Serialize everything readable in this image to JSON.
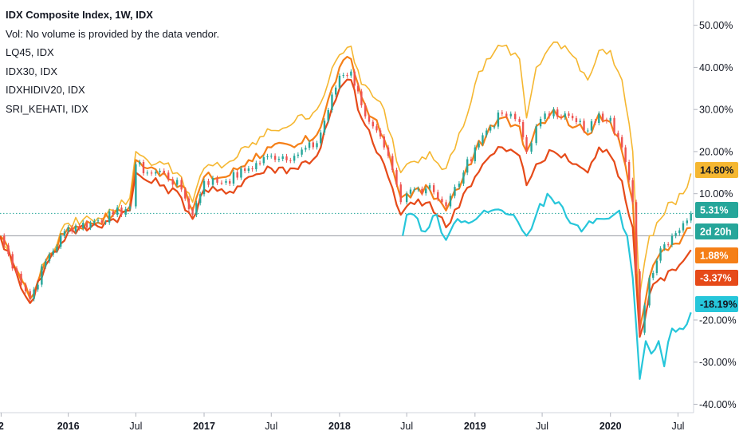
{
  "legend": {
    "title": "IDX Composite Index, 1W, IDX",
    "vol": "Vol: No volume is provided by the data vendor.",
    "items": [
      "LQ45, IDX",
      "IDX30, IDX",
      "IDXHIDIV20, IDX",
      "SRI_KEHATI, IDX"
    ]
  },
  "chart_data": {
    "type": "line",
    "y_axis": {
      "position": "right",
      "ylim": [
        -42,
        56
      ],
      "unit": "%",
      "ticks": [
        "50.00%",
        "40.00%",
        "30.00%",
        "20.00%",
        "10.00%",
        "-20.00%",
        "-30.00%",
        "-40.00%"
      ],
      "tick_values": [
        50,
        40,
        30,
        20,
        10,
        -20,
        -30,
        -40
      ]
    },
    "x_axis": {
      "range": [
        "2015-07-01",
        "2020-08-12"
      ],
      "ticks": [
        {
          "label": "2",
          "date": "2015-07-04",
          "bold": true
        },
        {
          "label": "2016",
          "date": "2016-01-01",
          "bold": true
        },
        {
          "label": "Jul",
          "date": "2016-07-01",
          "bold": false
        },
        {
          "label": "2017",
          "date": "2017-01-01",
          "bold": true
        },
        {
          "label": "Jul",
          "date": "2017-07-01",
          "bold": false
        },
        {
          "label": "2018",
          "date": "2018-01-01",
          "bold": true
        },
        {
          "label": "Jul",
          "date": "2018-07-01",
          "bold": false
        },
        {
          "label": "2019",
          "date": "2019-01-01",
          "bold": true
        },
        {
          "label": "Jul",
          "date": "2019-07-01",
          "bold": false
        },
        {
          "label": "2020",
          "date": "2020-01-01",
          "bold": true
        },
        {
          "label": "Jul",
          "date": "2020-07-01",
          "bold": false
        }
      ]
    },
    "reference_lines": [
      {
        "value": 0,
        "color": "#9598a1",
        "style": "solid"
      },
      {
        "value": 5.31,
        "color": "#26a69a",
        "style": "dotted"
      }
    ],
    "badges": [
      {
        "label": "14.80%",
        "value": 14.8,
        "color": "#f5b731",
        "text_color": "#131722"
      },
      {
        "label": "5.31%",
        "value": 5.31,
        "color": "#26a69a",
        "text_color": "#ffffff"
      },
      {
        "label": "2d 20h",
        "value": 0,
        "color": "#26a69a",
        "text_color": "#ffffff"
      },
      {
        "label": "1.88%",
        "value": 1.88,
        "color": "#f57f17",
        "text_color": "#ffffff"
      },
      {
        "label": "-3.37%",
        "value": -3.37,
        "color": "#e64a19",
        "text_color": "#ffffff"
      },
      {
        "label": "-18.19%",
        "value": -18.19,
        "color": "#26c6da",
        "text_color": "#131722"
      }
    ],
    "series": [
      {
        "name": "LQ45, IDX",
        "color": "#f57f17",
        "kind": "line",
        "x": [
          "2015-07-01",
          "2015-08-15",
          "2015-09-20",
          "2015-11-01",
          "2016-01-01",
          "2016-03-01",
          "2016-05-01",
          "2016-06-15",
          "2016-07-01",
          "2016-08-01",
          "2016-09-15",
          "2016-11-01",
          "2016-12-01",
          "2017-01-01",
          "2017-03-01",
          "2017-05-01",
          "2017-07-01",
          "2017-09-01",
          "2017-11-01",
          "2018-01-01",
          "2018-02-01",
          "2018-03-01",
          "2018-04-01",
          "2018-05-01",
          "2018-06-15",
          "2018-07-01",
          "2018-09-01",
          "2018-10-15",
          "2018-12-01",
          "2019-01-01",
          "2019-02-01",
          "2019-03-15",
          "2019-05-01",
          "2019-05-20",
          "2019-06-15",
          "2019-08-01",
          "2019-10-01",
          "2019-11-01",
          "2019-12-01",
          "2020-01-01",
          "2020-02-01",
          "2020-03-01",
          "2020-03-20",
          "2020-04-15",
          "2020-05-15",
          "2020-06-15",
          "2020-07-15",
          "2020-08-05"
        ],
        "y": [
          0,
          -8,
          -15,
          -6,
          2,
          3,
          5,
          7,
          18,
          16,
          15,
          12,
          6,
          14,
          14,
          18,
          21,
          21,
          24,
          40,
          42,
          33,
          28,
          23,
          9,
          10,
          11,
          6,
          14,
          20,
          24,
          28,
          26,
          20,
          26,
          30,
          26,
          24,
          29,
          27,
          20,
          8,
          -22,
          -10,
          -4,
          -2,
          0,
          1.88
        ]
      },
      {
        "name": "IDX30, IDX",
        "color": "#e64a19",
        "kind": "line",
        "x": [
          "2015-07-01",
          "2015-08-15",
          "2015-09-20",
          "2015-11-01",
          "2016-01-01",
          "2016-03-01",
          "2016-05-01",
          "2016-06-15",
          "2016-07-01",
          "2016-08-01",
          "2016-09-15",
          "2016-11-01",
          "2016-12-01",
          "2017-01-01",
          "2017-03-01",
          "2017-05-01",
          "2017-07-01",
          "2017-09-01",
          "2017-11-01",
          "2018-01-01",
          "2018-02-01",
          "2018-03-01",
          "2018-04-01",
          "2018-05-01",
          "2018-06-15",
          "2018-07-01",
          "2018-09-01",
          "2018-10-15",
          "2018-12-01",
          "2019-01-01",
          "2019-02-01",
          "2019-03-15",
          "2019-05-01",
          "2019-05-20",
          "2019-06-15",
          "2019-08-01",
          "2019-10-01",
          "2019-11-01",
          "2019-12-01",
          "2020-01-01",
          "2020-02-01",
          "2020-03-01",
          "2020-03-20",
          "2020-04-15",
          "2020-05-15",
          "2020-06-15",
          "2020-07-15",
          "2020-08-05"
        ],
        "y": [
          0,
          -9,
          -16,
          -7,
          1,
          2,
          4,
          6,
          15,
          13,
          12,
          9,
          4,
          11,
          10,
          14,
          16,
          16,
          19,
          35,
          37,
          28,
          22,
          17,
          5,
          7,
          8,
          2,
          10,
          14,
          18,
          21,
          19,
          12,
          17,
          20,
          17,
          15,
          21,
          19,
          13,
          2,
          -24,
          -14,
          -10,
          -8,
          -6,
          -3.37
        ]
      },
      {
        "name": "IDXHIDIV20, IDX",
        "color": "#f5b731",
        "kind": "line",
        "x": [
          "2015-07-01",
          "2015-08-15",
          "2015-09-20",
          "2015-11-01",
          "2016-01-01",
          "2016-03-01",
          "2016-05-01",
          "2016-06-15",
          "2016-07-01",
          "2016-08-01",
          "2016-09-15",
          "2016-11-01",
          "2016-12-01",
          "2017-01-01",
          "2017-03-01",
          "2017-05-01",
          "2017-07-01",
          "2017-09-01",
          "2017-11-01",
          "2018-01-01",
          "2018-02-01",
          "2018-03-01",
          "2018-04-01",
          "2018-05-01",
          "2018-06-15",
          "2018-07-01",
          "2018-09-01",
          "2018-10-15",
          "2018-12-01",
          "2019-01-01",
          "2019-02-01",
          "2019-03-15",
          "2019-05-01",
          "2019-05-20",
          "2019-06-15",
          "2019-08-01",
          "2019-10-01",
          "2019-11-01",
          "2019-12-01",
          "2020-01-01",
          "2020-02-01",
          "2020-03-01",
          "2020-03-20",
          "2020-04-15",
          "2020-05-15",
          "2020-06-15",
          "2020-07-15",
          "2020-08-05"
        ],
        "y": [
          0,
          -8,
          -15,
          -6,
          3,
          4,
          6,
          9,
          20,
          18,
          17,
          14,
          8,
          16,
          17,
          21,
          25,
          27,
          30,
          43,
          45,
          36,
          33,
          30,
          15,
          17,
          20,
          16,
          26,
          36,
          42,
          45,
          42,
          28,
          40,
          46,
          42,
          37,
          44,
          44,
          37,
          20,
          -14,
          0,
          4,
          8,
          10,
          14.8
        ]
      },
      {
        "name": "SRI_KEHATI, IDX",
        "color": "#26c6da",
        "kind": "line",
        "x": [
          "2018-06-20",
          "2018-07-01",
          "2018-07-20",
          "2018-08-20",
          "2018-09-20",
          "2018-10-15",
          "2018-11-15",
          "2018-12-15",
          "2019-01-15",
          "2019-02-15",
          "2019-03-15",
          "2019-04-15",
          "2019-05-20",
          "2019-06-15",
          "2019-07-15",
          "2019-08-15",
          "2019-09-15",
          "2019-10-15",
          "2019-11-15",
          "2019-12-15",
          "2020-01-10",
          "2020-01-25",
          "2020-02-15",
          "2020-03-01",
          "2020-03-20",
          "2020-04-05",
          "2020-04-20",
          "2020-05-10",
          "2020-05-25",
          "2020-06-15",
          "2020-07-05",
          "2020-07-25",
          "2020-08-05"
        ],
        "y": [
          0,
          5,
          5,
          1,
          5,
          -1,
          4,
          3,
          5,
          6,
          6,
          5,
          0,
          5,
          10,
          8,
          3,
          1,
          3,
          4,
          5,
          6,
          0,
          -10,
          -34,
          -25,
          -28,
          -25,
          -31,
          -22,
          -22,
          -21,
          -18.19
        ]
      },
      {
        "name": "IDX Composite Index, 1W, IDX",
        "color": "#26a69a",
        "kind": "candles",
        "x": [
          "2015-07-01",
          "2015-08-15",
          "2015-09-20",
          "2015-11-01",
          "2016-01-01",
          "2016-03-01",
          "2016-05-01",
          "2016-06-15",
          "2016-07-01",
          "2016-08-01",
          "2016-09-15",
          "2016-11-01",
          "2016-12-01",
          "2017-01-01",
          "2017-03-01",
          "2017-05-01",
          "2017-07-01",
          "2017-09-01",
          "2017-11-01",
          "2018-01-01",
          "2018-02-01",
          "2018-03-01",
          "2018-04-01",
          "2018-05-01",
          "2018-06-15",
          "2018-07-01",
          "2018-09-01",
          "2018-10-15",
          "2018-12-01",
          "2019-01-01",
          "2019-02-01",
          "2019-03-15",
          "2019-05-01",
          "2019-05-20",
          "2019-06-15",
          "2019-08-01",
          "2019-10-01",
          "2019-11-01",
          "2019-12-01",
          "2020-01-01",
          "2020-02-01",
          "2020-03-01",
          "2020-03-20",
          "2020-04-15",
          "2020-05-15",
          "2020-06-15",
          "2020-07-15",
          "2020-08-05"
        ],
        "y": [
          0,
          -9,
          -15,
          -6,
          2,
          3,
          5,
          7,
          17,
          15,
          15,
          11,
          5,
          13,
          13,
          16,
          19,
          19,
          22,
          38,
          39,
          31,
          26,
          21,
          8,
          10,
          12,
          7,
          15,
          21,
          25,
          29,
          27,
          20,
          26,
          30,
          27,
          25,
          29,
          28,
          21,
          8,
          -23,
          -10,
          -3,
          0,
          3,
          5.31
        ]
      }
    ]
  }
}
